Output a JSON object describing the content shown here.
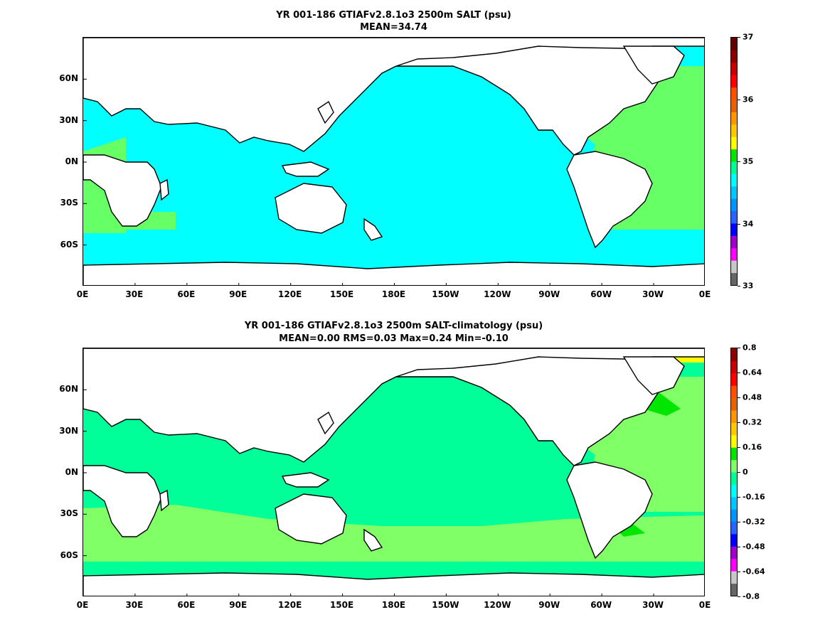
{
  "colors": {
    "land": "#ffffff",
    "coast": "#000000",
    "salt_main": "#00ffff",
    "salt_atlantic": "#66ff66",
    "salt_high": "#00e600",
    "anom_main": "#00ff99",
    "anom_pos": "#80ff66",
    "anom_high": "#00e600",
    "anom_arctic": "#ffff00"
  },
  "chart_data": [
    {
      "type": "heatmap",
      "title": "YR 001-186 GTIAFv2.8.1o3 2500m SALT (psu)",
      "subtitle": "MEAN=34.74",
      "x_tick_labels": [
        "0E",
        "30E",
        "60E",
        "90E",
        "120E",
        "150E",
        "180E",
        "150W",
        "120W",
        "90W",
        "60W",
        "30W",
        "0E"
      ],
      "y_tick_labels": [
        "60N",
        "30N",
        "0N",
        "30S",
        "60S"
      ],
      "y_tick_values": [
        60,
        30,
        0,
        -30,
        -60
      ],
      "xlim": [
        0,
        360
      ],
      "ylim": [
        -90,
        90
      ],
      "colorbar": {
        "labels": [
          "37",
          "36",
          "35",
          "34",
          "33"
        ],
        "label_values": [
          37,
          36,
          35,
          34,
          33
        ],
        "range": [
          33,
          37
        ],
        "colors": [
          "#666666",
          "#c8c8c8",
          "#ff00ff",
          "#a000c8",
          "#0000ff",
          "#2864ff",
          "#0096ff",
          "#00c8ff",
          "#00ffff",
          "#00ff99",
          "#00e600",
          "#ffff00",
          "#ffc800",
          "#ff9600",
          "#e66400",
          "#ff5000",
          "#ff0000",
          "#c80000",
          "#8c0000",
          "#640000"
        ]
      }
    },
    {
      "type": "heatmap",
      "title": "YR 001-186 GTIAFv2.8.1o3 2500m SALT-climatology (psu)",
      "subtitle": "MEAN=0.00   RMS=0.03   Max=0.24   Min=-0.10",
      "x_tick_labels": [
        "0E",
        "30E",
        "60E",
        "90E",
        "120E",
        "150E",
        "180E",
        "150W",
        "120W",
        "90W",
        "60W",
        "30W",
        "0E"
      ],
      "y_tick_labels": [
        "60N",
        "30N",
        "0N",
        "30S",
        "60S"
      ],
      "y_tick_values": [
        60,
        30,
        0,
        -30,
        -60
      ],
      "xlim": [
        0,
        360
      ],
      "ylim": [
        -90,
        90
      ],
      "colorbar": {
        "labels": [
          "0.8",
          "0.64",
          "0.48",
          "0.32",
          "0.16",
          "0",
          "-0.16",
          "-0.32",
          "-0.48",
          "-0.64",
          "-0.8"
        ],
        "label_values": [
          0.8,
          0.64,
          0.48,
          0.32,
          0.16,
          0,
          -0.16,
          -0.32,
          -0.48,
          -0.64,
          -0.8
        ],
        "range": [
          -0.8,
          0.8
        ],
        "colors": [
          "#666666",
          "#c8c8c8",
          "#ff00ff",
          "#a000c8",
          "#0000ff",
          "#2864ff",
          "#0096ff",
          "#00c8ff",
          "#00ffff",
          "#00ff99",
          "#80ff66",
          "#00e600",
          "#ffff00",
          "#ffc800",
          "#ff9600",
          "#e66400",
          "#ff5000",
          "#ff0000",
          "#c80000",
          "#8c0000"
        ]
      }
    }
  ]
}
